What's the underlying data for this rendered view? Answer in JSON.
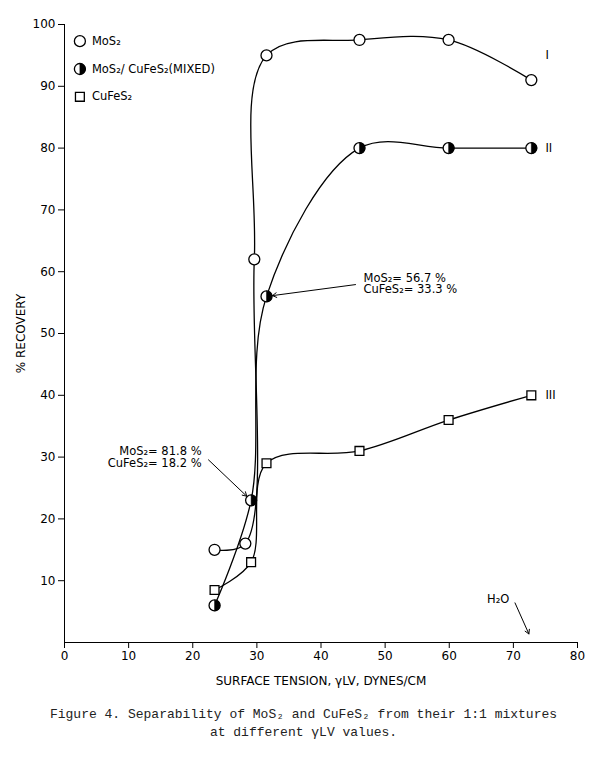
{
  "chart_data": {
    "type": "line",
    "caption": "Figure 4. Separability of MoS₂ and CuFeS₂ from their 1:1 mixtures at different γLV values.",
    "x_label": "SURFACE TENSION, γLV, DYNES/CM",
    "y_label": "% RECOVERY",
    "xlim": [
      0,
      80
    ],
    "xticks": [
      0,
      10,
      20,
      30,
      40,
      50,
      60,
      70,
      80
    ],
    "ylim": [
      0,
      100
    ],
    "yticks": [
      10,
      20,
      30,
      40,
      50,
      60,
      70,
      80,
      90,
      100
    ],
    "grid": false,
    "legend": "top-left",
    "series": [
      {
        "name": "MoS₂",
        "color": "#000000",
        "marker": "circle",
        "line_style": "solid",
        "x": [
          23.4,
          28.2,
          29.6,
          31.5,
          46,
          59.9,
          72.8
        ],
        "values": [
          15,
          16,
          62,
          95,
          97.5,
          97.5,
          91
        ]
      },
      {
        "name": "MoS₂/ CuFeS₂(MIXED)",
        "color": "#000000",
        "marker": "half-circle",
        "line_style": "solid",
        "x": [
          23.4,
          29.1,
          31.5,
          46,
          59.9,
          72.8
        ],
        "values": [
          6,
          23,
          56,
          80,
          80,
          80
        ]
      },
      {
        "name": "CuFeS₂",
        "color": "#000000",
        "marker": "square",
        "line_style": "solid",
        "x": [
          23.4,
          29.1,
          31.5,
          46,
          59.9,
          72.8
        ],
        "values": [
          8.5,
          13,
          29,
          31,
          36,
          40
        ]
      }
    ],
    "annotations": [
      {
        "text": "MoS₂= 56.7 %\nCuFeS₂= 33.3 %",
        "x": 46,
        "y": 58,
        "arrow_to": [
          31.5,
          56
        ]
      },
      {
        "text": "MoS₂= 81.8 %\nCuFeS₂= 18.2 %",
        "x": 22,
        "y": 30,
        "arrow_to": [
          29.1,
          23
        ]
      },
      {
        "text": "H₂O",
        "x": 70,
        "y": 7,
        "arrow_to": [
          72.8,
          0.5
        ]
      },
      {
        "text": "I",
        "x": 75,
        "y": 95
      },
      {
        "text": "II",
        "x": 75,
        "y": 80
      },
      {
        "text": "III",
        "x": 75,
        "y": 40
      }
    ]
  }
}
